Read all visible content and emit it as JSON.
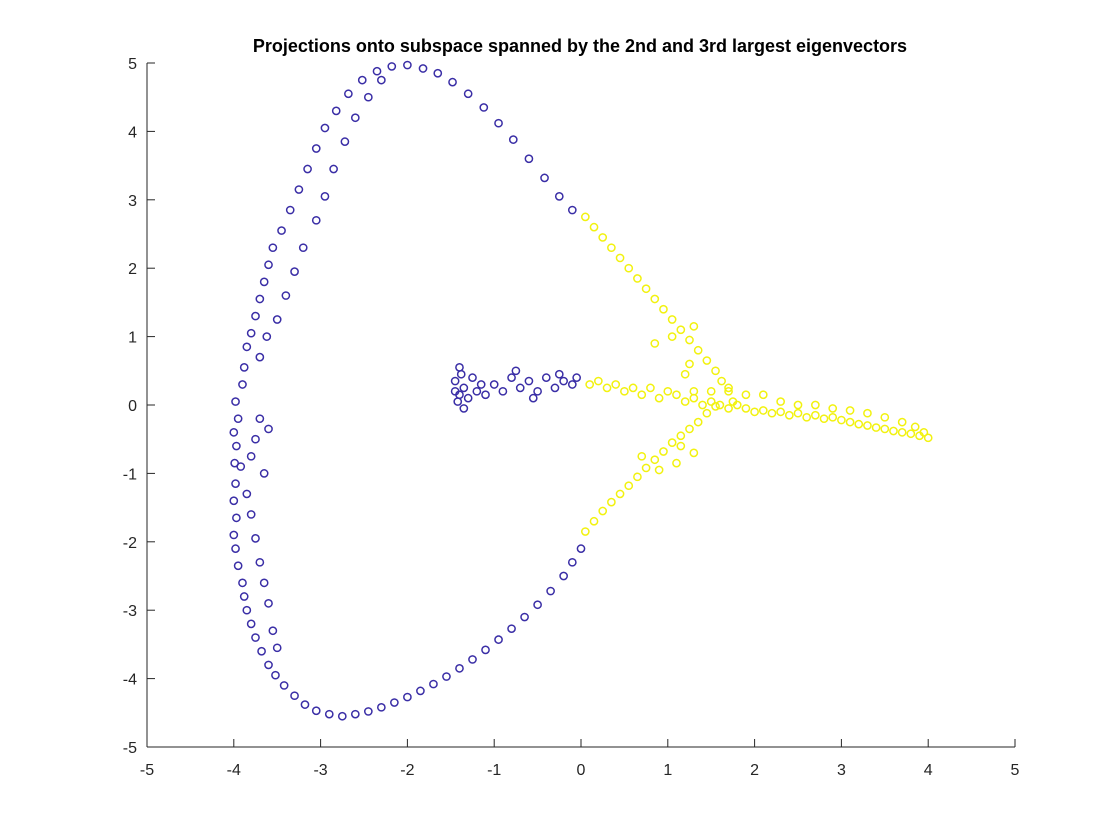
{
  "chart_data": {
    "type": "scatter",
    "title": "Projections onto subspace spanned by the 2nd and 3rd largest eigenvectors",
    "xlabel": "",
    "ylabel": "",
    "xlim": [
      -5,
      5
    ],
    "ylim": [
      -5,
      5
    ],
    "xticks": [
      -5,
      -4,
      -3,
      -2,
      -1,
      0,
      1,
      2,
      3,
      4,
      5
    ],
    "yticks": [
      -5,
      -4,
      -3,
      -2,
      -1,
      0,
      1,
      2,
      3,
      4,
      5
    ],
    "grid": false,
    "marker": "circle-open",
    "series": [
      {
        "color": "#3a2ea6",
        "points": [
          [
            -3.98,
            0.05
          ],
          [
            -3.95,
            -0.2
          ],
          [
            -4.0,
            -0.4
          ],
          [
            -3.97,
            -0.6
          ],
          [
            -3.99,
            -0.85
          ],
          [
            -3.98,
            -1.15
          ],
          [
            -4.0,
            -1.4
          ],
          [
            -3.97,
            -1.65
          ],
          [
            -4.0,
            -1.9
          ],
          [
            -3.98,
            -2.1
          ],
          [
            -3.95,
            -2.35
          ],
          [
            -3.9,
            -2.6
          ],
          [
            -3.88,
            -2.8
          ],
          [
            -3.85,
            -3.0
          ],
          [
            -3.8,
            -3.2
          ],
          [
            -3.75,
            -3.4
          ],
          [
            -3.68,
            -3.6
          ],
          [
            -3.6,
            -3.8
          ],
          [
            -3.52,
            -3.95
          ],
          [
            -3.42,
            -4.1
          ],
          [
            -3.3,
            -4.25
          ],
          [
            -3.18,
            -4.38
          ],
          [
            -3.05,
            -4.47
          ],
          [
            -2.9,
            -4.52
          ],
          [
            -2.75,
            -4.55
          ],
          [
            -2.6,
            -4.52
          ],
          [
            -2.45,
            -4.48
          ],
          [
            -2.3,
            -4.42
          ],
          [
            -2.15,
            -4.35
          ],
          [
            -2.0,
            -4.27
          ],
          [
            -1.85,
            -4.18
          ],
          [
            -1.7,
            -4.08
          ],
          [
            -1.55,
            -3.97
          ],
          [
            -1.4,
            -3.85
          ],
          [
            -1.25,
            -3.72
          ],
          [
            -1.1,
            -3.58
          ],
          [
            -0.95,
            -3.43
          ],
          [
            -0.8,
            -3.27
          ],
          [
            -0.65,
            -3.1
          ],
          [
            -0.5,
            -2.92
          ],
          [
            -0.35,
            -2.72
          ],
          [
            -0.2,
            -2.5
          ],
          [
            -0.1,
            -2.3
          ],
          [
            0.0,
            -2.1
          ],
          [
            -3.92,
            -0.9
          ],
          [
            -3.85,
            -1.3
          ],
          [
            -3.8,
            -1.6
          ],
          [
            -3.75,
            -1.95
          ],
          [
            -3.7,
            -2.3
          ],
          [
            -3.65,
            -2.6
          ],
          [
            -3.6,
            -2.9
          ],
          [
            -3.55,
            -3.3
          ],
          [
            -3.5,
            -3.55
          ],
          [
            -3.7,
            -0.2
          ],
          [
            -3.75,
            -0.5
          ],
          [
            -3.8,
            -0.75
          ],
          [
            -3.6,
            -0.35
          ],
          [
            -3.65,
            -1.0
          ],
          [
            -3.9,
            0.3
          ],
          [
            -3.88,
            0.55
          ],
          [
            -3.85,
            0.85
          ],
          [
            -3.8,
            1.05
          ],
          [
            -3.75,
            1.3
          ],
          [
            -3.7,
            1.55
          ],
          [
            -3.65,
            1.8
          ],
          [
            -3.6,
            2.05
          ],
          [
            -3.55,
            2.3
          ],
          [
            -3.45,
            2.55
          ],
          [
            -3.35,
            2.85
          ],
          [
            -3.25,
            3.15
          ],
          [
            -3.15,
            3.45
          ],
          [
            -3.05,
            3.75
          ],
          [
            -2.95,
            4.05
          ],
          [
            -2.82,
            4.3
          ],
          [
            -2.68,
            4.55
          ],
          [
            -2.52,
            4.75
          ],
          [
            -2.35,
            4.88
          ],
          [
            -2.18,
            4.95
          ],
          [
            -2.0,
            4.97
          ],
          [
            -1.82,
            4.92
          ],
          [
            -1.65,
            4.85
          ],
          [
            -1.48,
            4.72
          ],
          [
            -1.3,
            4.55
          ],
          [
            -1.12,
            4.35
          ],
          [
            -0.95,
            4.12
          ],
          [
            -0.78,
            3.88
          ],
          [
            -0.6,
            3.6
          ],
          [
            -0.42,
            3.32
          ],
          [
            -0.25,
            3.05
          ],
          [
            -0.1,
            2.85
          ],
          [
            -3.7,
            0.7
          ],
          [
            -3.62,
            1.0
          ],
          [
            -3.5,
            1.25
          ],
          [
            -3.4,
            1.6
          ],
          [
            -3.3,
            1.95
          ],
          [
            -3.2,
            2.3
          ],
          [
            -3.05,
            2.7
          ],
          [
            -2.95,
            3.05
          ],
          [
            -2.85,
            3.45
          ],
          [
            -2.72,
            3.85
          ],
          [
            -2.6,
            4.2
          ],
          [
            -2.45,
            4.5
          ],
          [
            -2.3,
            4.75
          ],
          [
            -1.45,
            0.35
          ],
          [
            -1.4,
            0.15
          ],
          [
            -1.38,
            0.45
          ],
          [
            -1.42,
            0.05
          ],
          [
            -1.35,
            0.25
          ],
          [
            -1.3,
            0.1
          ],
          [
            -1.25,
            0.4
          ],
          [
            -1.2,
            0.2
          ],
          [
            -1.15,
            0.3
          ],
          [
            -1.1,
            0.15
          ],
          [
            -1.0,
            0.3
          ],
          [
            -0.9,
            0.2
          ],
          [
            -0.8,
            0.4
          ],
          [
            -0.7,
            0.25
          ],
          [
            -0.6,
            0.35
          ],
          [
            -0.5,
            0.2
          ],
          [
            -0.4,
            0.4
          ],
          [
            -0.3,
            0.25
          ],
          [
            -0.2,
            0.35
          ],
          [
            -0.1,
            0.3
          ],
          [
            -1.4,
            0.55
          ],
          [
            -1.35,
            -0.05
          ],
          [
            -1.45,
            0.2
          ],
          [
            -0.75,
            0.5
          ],
          [
            -0.55,
            0.1
          ],
          [
            -0.25,
            0.45
          ],
          [
            -0.05,
            0.4
          ]
        ]
      },
      {
        "color": "#f2f20f",
        "points": [
          [
            0.05,
            2.75
          ],
          [
            0.15,
            2.6
          ],
          [
            0.25,
            2.45
          ],
          [
            0.35,
            2.3
          ],
          [
            0.45,
            2.15
          ],
          [
            0.55,
            2.0
          ],
          [
            0.65,
            1.85
          ],
          [
            0.75,
            1.7
          ],
          [
            0.85,
            1.55
          ],
          [
            0.95,
            1.4
          ],
          [
            1.05,
            1.25
          ],
          [
            1.15,
            1.1
          ],
          [
            1.25,
            0.95
          ],
          [
            1.35,
            0.8
          ],
          [
            1.45,
            0.65
          ],
          [
            1.55,
            0.5
          ],
          [
            1.62,
            0.35
          ],
          [
            1.7,
            0.2
          ],
          [
            1.75,
            0.05
          ],
          [
            0.05,
            -1.85
          ],
          [
            0.15,
            -1.7
          ],
          [
            0.25,
            -1.55
          ],
          [
            0.35,
            -1.42
          ],
          [
            0.45,
            -1.3
          ],
          [
            0.55,
            -1.18
          ],
          [
            0.65,
            -1.05
          ],
          [
            0.75,
            -0.92
          ],
          [
            0.85,
            -0.8
          ],
          [
            0.95,
            -0.68
          ],
          [
            1.05,
            -0.55
          ],
          [
            1.15,
            -0.45
          ],
          [
            1.25,
            -0.35
          ],
          [
            1.35,
            -0.25
          ],
          [
            1.45,
            -0.12
          ],
          [
            1.55,
            -0.02
          ],
          [
            0.1,
            0.3
          ],
          [
            0.2,
            0.35
          ],
          [
            0.3,
            0.25
          ],
          [
            0.4,
            0.3
          ],
          [
            0.5,
            0.2
          ],
          [
            0.6,
            0.25
          ],
          [
            0.7,
            0.15
          ],
          [
            0.8,
            0.25
          ],
          [
            0.9,
            0.1
          ],
          [
            1.0,
            0.2
          ],
          [
            1.1,
            0.15
          ],
          [
            1.2,
            0.05
          ],
          [
            1.3,
            0.1
          ],
          [
            1.4,
            0.0
          ],
          [
            1.5,
            0.05
          ],
          [
            1.6,
            0.0
          ],
          [
            1.7,
            -0.05
          ],
          [
            1.8,
            0.0
          ],
          [
            1.9,
            -0.05
          ],
          [
            2.0,
            -0.1
          ],
          [
            2.1,
            -0.08
          ],
          [
            2.2,
            -0.12
          ],
          [
            2.3,
            -0.1
          ],
          [
            2.4,
            -0.15
          ],
          [
            2.5,
            -0.12
          ],
          [
            2.6,
            -0.18
          ],
          [
            2.7,
            -0.15
          ],
          [
            2.8,
            -0.2
          ],
          [
            2.9,
            -0.18
          ],
          [
            3.0,
            -0.22
          ],
          [
            3.1,
            -0.25
          ],
          [
            3.2,
            -0.28
          ],
          [
            3.3,
            -0.3
          ],
          [
            3.4,
            -0.33
          ],
          [
            3.5,
            -0.35
          ],
          [
            3.6,
            -0.38
          ],
          [
            3.7,
            -0.4
          ],
          [
            3.8,
            -0.42
          ],
          [
            3.9,
            -0.45
          ],
          [
            4.0,
            -0.48
          ],
          [
            1.3,
            0.2
          ],
          [
            1.5,
            0.2
          ],
          [
            1.7,
            0.25
          ],
          [
            1.9,
            0.15
          ],
          [
            2.1,
            0.15
          ],
          [
            2.3,
            0.05
          ],
          [
            2.5,
            0.0
          ],
          [
            2.7,
            0.0
          ],
          [
            2.9,
            -0.05
          ],
          [
            3.1,
            -0.08
          ],
          [
            3.3,
            -0.12
          ],
          [
            3.5,
            -0.18
          ],
          [
            3.7,
            -0.25
          ],
          [
            3.85,
            -0.32
          ],
          [
            3.95,
            -0.4
          ],
          [
            1.25,
            0.6
          ],
          [
            1.2,
            0.45
          ],
          [
            1.15,
            -0.6
          ],
          [
            1.3,
            -0.7
          ],
          [
            1.1,
            -0.85
          ],
          [
            0.9,
            -0.95
          ],
          [
            0.7,
            -0.75
          ],
          [
            1.05,
            1.0
          ],
          [
            1.3,
            1.15
          ],
          [
            0.85,
            0.9
          ]
        ]
      }
    ]
  }
}
